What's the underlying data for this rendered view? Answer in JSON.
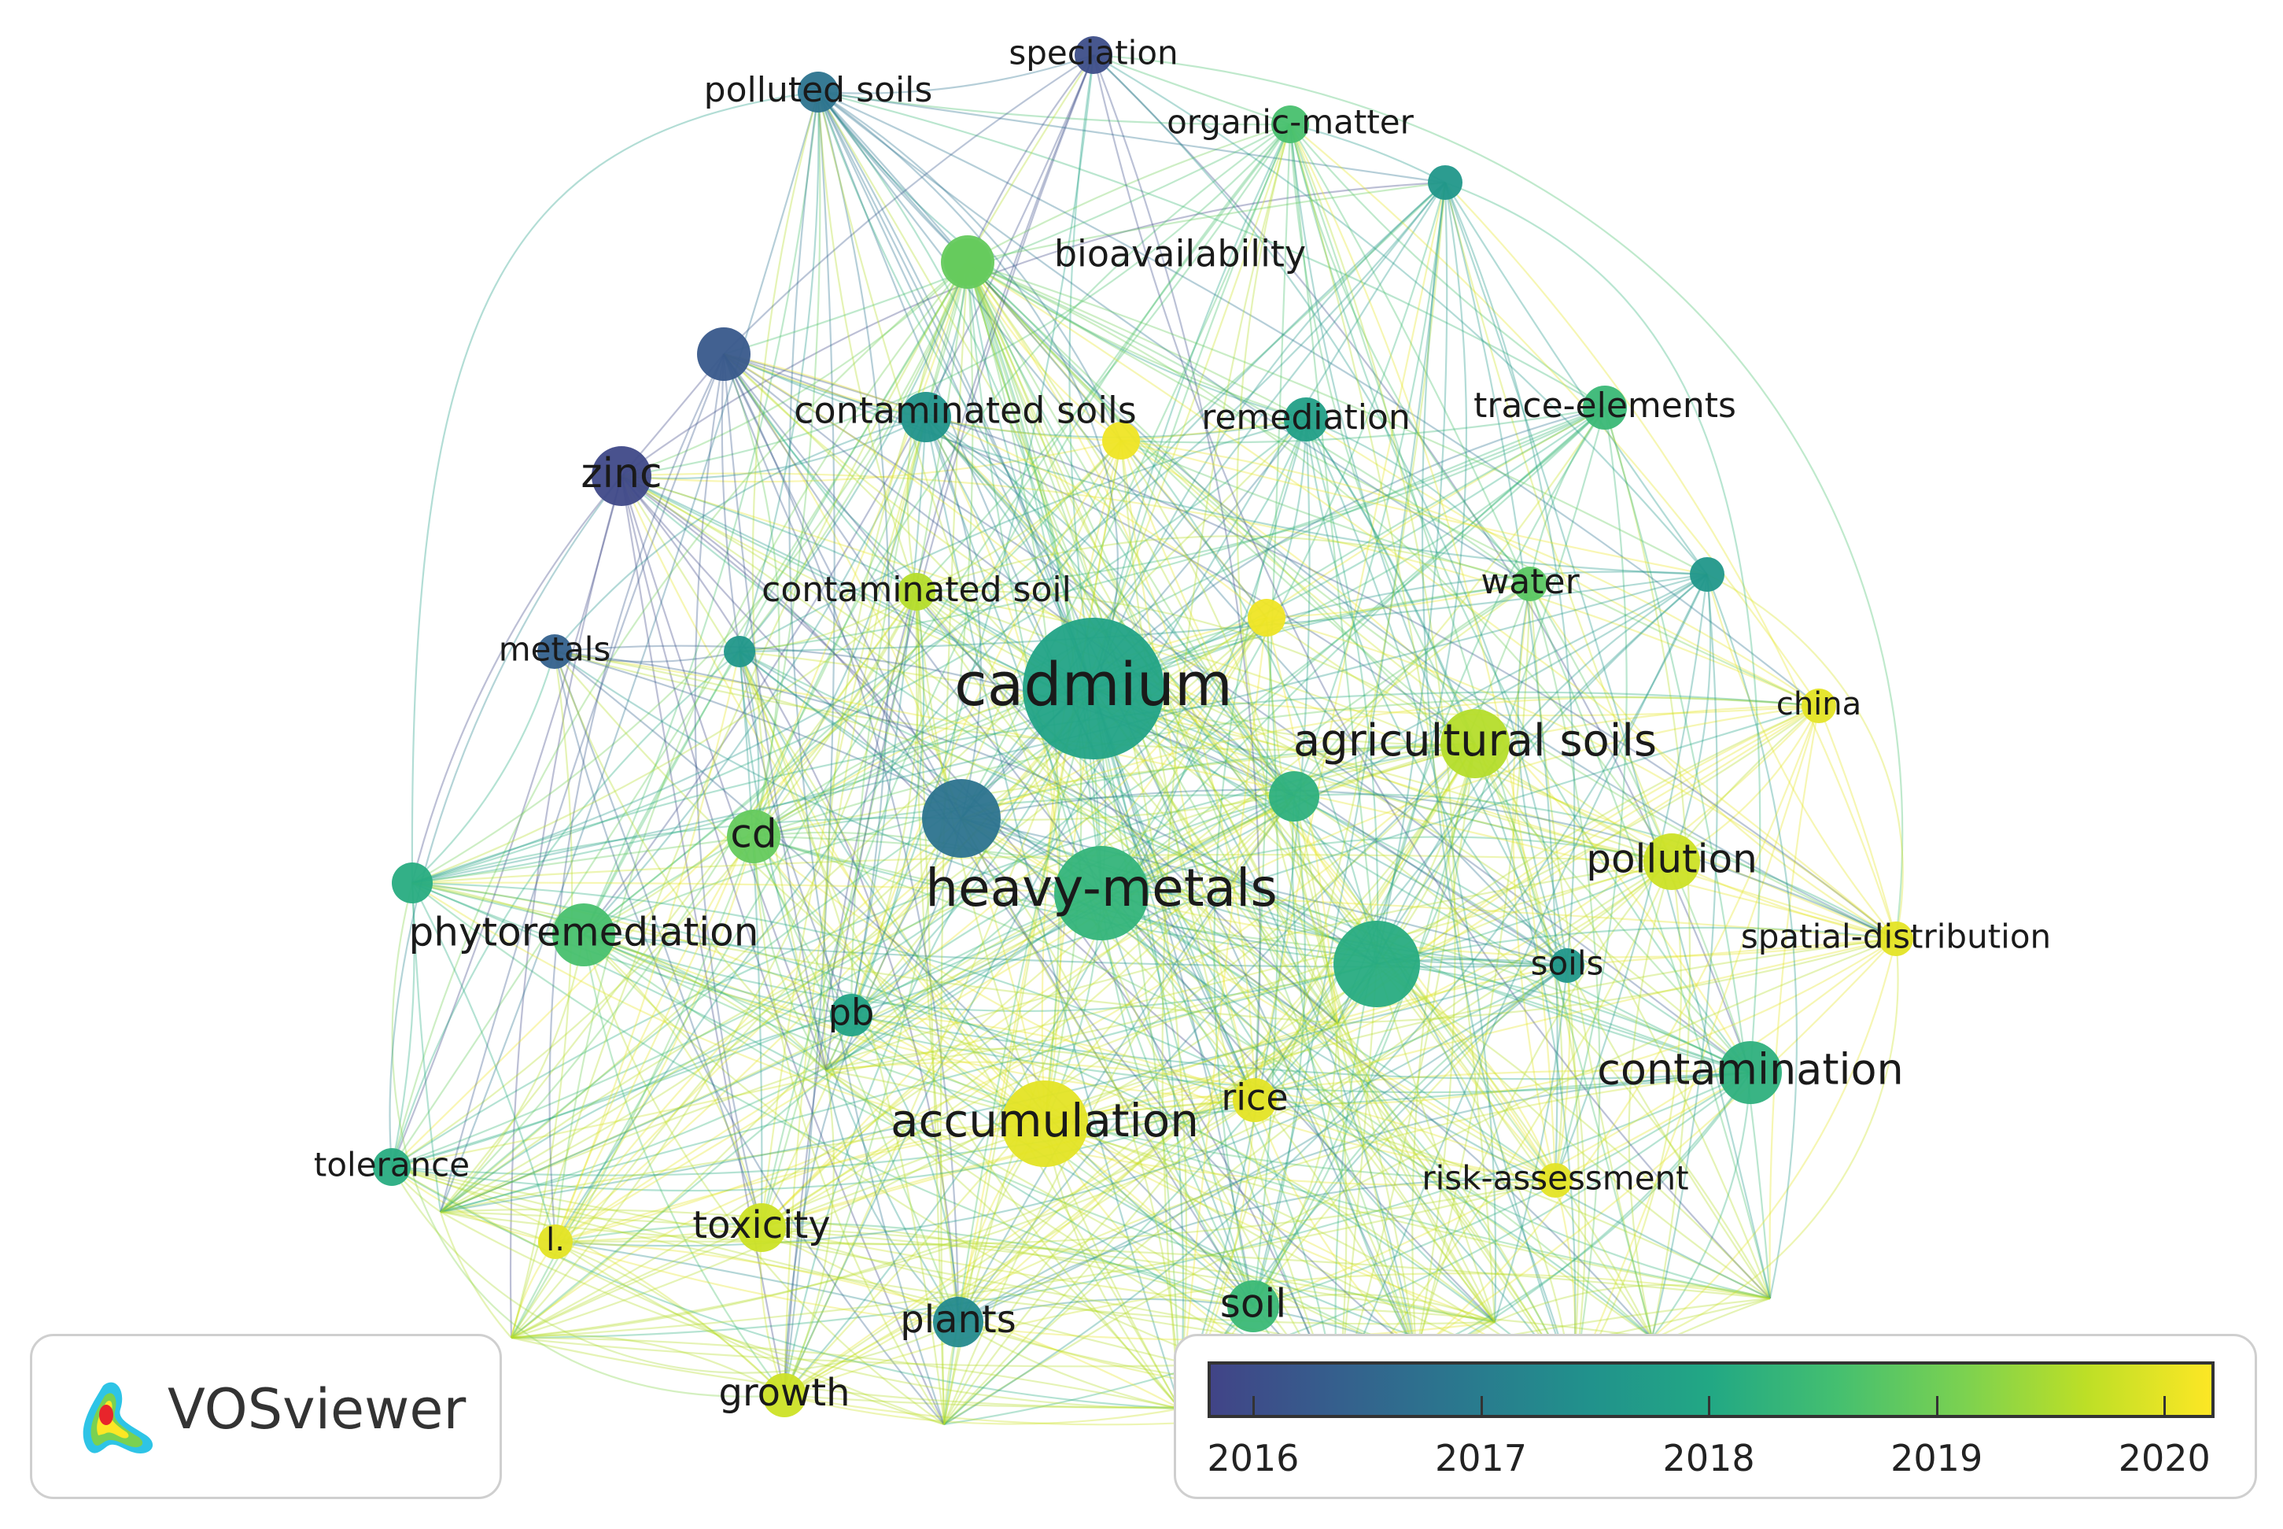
{
  "colors": {
    "2016": "#414487",
    "2017": "#2a788e",
    "2018": "#22a884",
    "2019": "#44bf70",
    "2020": "#fde725",
    "gradient": [
      "#414487",
      "#355f8d",
      "#2a788e",
      "#21918c",
      "#22a884",
      "#44bf70",
      "#7ad151",
      "#bddf26",
      "#fde725"
    ]
  },
  "brand": {
    "name": "VOSviewer",
    "logo_icon": "vosviewer-density-logo-icon"
  },
  "legend": {
    "ticks": [
      "2016",
      "2017",
      "2018",
      "2019",
      "2020"
    ],
    "min": 2015.8,
    "max": 2020.22
  },
  "nodes": [
    {
      "id": "cadmium",
      "label": "cadmium",
      "year": 2017.9,
      "size": 90
    },
    {
      "id": "heavy-metals",
      "label": "heavy-metals",
      "year": 2018.3,
      "size": 60
    },
    {
      "id": "accumulation",
      "label": "accumulation",
      "year": 2020.0,
      "size": 55
    },
    {
      "id": "agricultural-soils",
      "label": "agricultural soils",
      "year": 2019.6,
      "size": 44
    },
    {
      "id": "contamination",
      "label": "contamination",
      "year": 2018.2,
      "size": 40
    },
    {
      "id": "phytoremediation",
      "label": "phytoremediation",
      "year": 2018.6,
      "size": 40
    },
    {
      "id": "zinc",
      "label": "zinc",
      "year": 2015.9,
      "size": 38
    },
    {
      "id": "pollution",
      "label": "pollution",
      "year": 2019.8,
      "size": 36
    },
    {
      "id": "contaminated-soils",
      "label": "contaminated soils",
      "year": 2017.5,
      "size": 32
    },
    {
      "id": "cd",
      "label": "cd",
      "year": 2018.9,
      "size": 34
    },
    {
      "id": "soil",
      "label": "soil",
      "year": 2018.4,
      "size": 33
    },
    {
      "id": "plants",
      "label": "plants",
      "year": 2017.3,
      "size": 32
    },
    {
      "id": "toxicity",
      "label": "toxicity",
      "year": 2019.8,
      "size": 31
    },
    {
      "id": "growth",
      "label": "growth",
      "year": 2019.8,
      "size": 28
    },
    {
      "id": "bioavailability",
      "label": "bioavailability",
      "year": 2019.0,
      "size": 30
    },
    {
      "id": "remediation",
      "label": "remediation",
      "year": 2017.8,
      "size": 28
    },
    {
      "id": "trace-elements",
      "label": "trace-elements",
      "year": 2018.4,
      "size": 28
    },
    {
      "id": "rice",
      "label": "rice",
      "year": 2020.0,
      "size": 28
    },
    {
      "id": "pb",
      "label": "pb",
      "year": 2017.9,
      "size": 27
    },
    {
      "id": "tolerance",
      "label": "tolerance",
      "year": 2018.1,
      "size": 24
    },
    {
      "id": "water",
      "label": "water",
      "year": 2018.8,
      "size": 22
    },
    {
      "id": "polluted-soils",
      "label": "polluted soils",
      "year": 2016.8,
      "size": 26
    },
    {
      "id": "speciation",
      "label": "speciation",
      "year": 2016.0,
      "size": 24
    },
    {
      "id": "organic-matter",
      "label": "organic-matter",
      "year": 2018.6,
      "size": 24
    },
    {
      "id": "contaminated-soil",
      "label": "contaminated soil",
      "year": 2019.6,
      "size": 24
    },
    {
      "id": "metals",
      "label": "metals",
      "year": 2016.4,
      "size": 22
    },
    {
      "id": "china",
      "label": "china",
      "year": 2020.0,
      "size": 22
    },
    {
      "id": "spatial-distribution",
      "label": "spatial-distribution",
      "year": 2020.0,
      "size": 22
    },
    {
      "id": "soils",
      "label": "soils",
      "year": 2017.6,
      "size": 22
    },
    {
      "id": "risk-assessment",
      "label": "risk-assessment",
      "year": 2020.0,
      "size": 22
    },
    {
      "id": "l",
      "label": "l.",
      "year": 2020.0,
      "size": 22
    },
    {
      "id": "u1",
      "label": "",
      "year": 2016.8,
      "size": 50
    },
    {
      "id": "u2",
      "label": "",
      "year": 2018.1,
      "size": 55
    },
    {
      "id": "u3",
      "label": "",
      "year": 2018.2,
      "size": 32
    },
    {
      "id": "u4",
      "label": "",
      "year": 2016.2,
      "size": 34
    },
    {
      "id": "u5",
      "label": "",
      "year": 2018.9,
      "size": 34
    },
    {
      "id": "u6",
      "label": "",
      "year": 2017.6,
      "size": 22
    },
    {
      "id": "u7",
      "label": "",
      "year": 2017.6,
      "size": 22
    },
    {
      "id": "u8",
      "label": "",
      "year": 2018.1,
      "size": 26
    },
    {
      "id": "u9",
      "label": "",
      "year": 2020.1,
      "size": 24
    },
    {
      "id": "u10",
      "label": "",
      "year": 2020.1,
      "size": 24
    },
    {
      "id": "u11",
      "label": "",
      "year": 2017.6,
      "size": 20
    }
  ]
}
